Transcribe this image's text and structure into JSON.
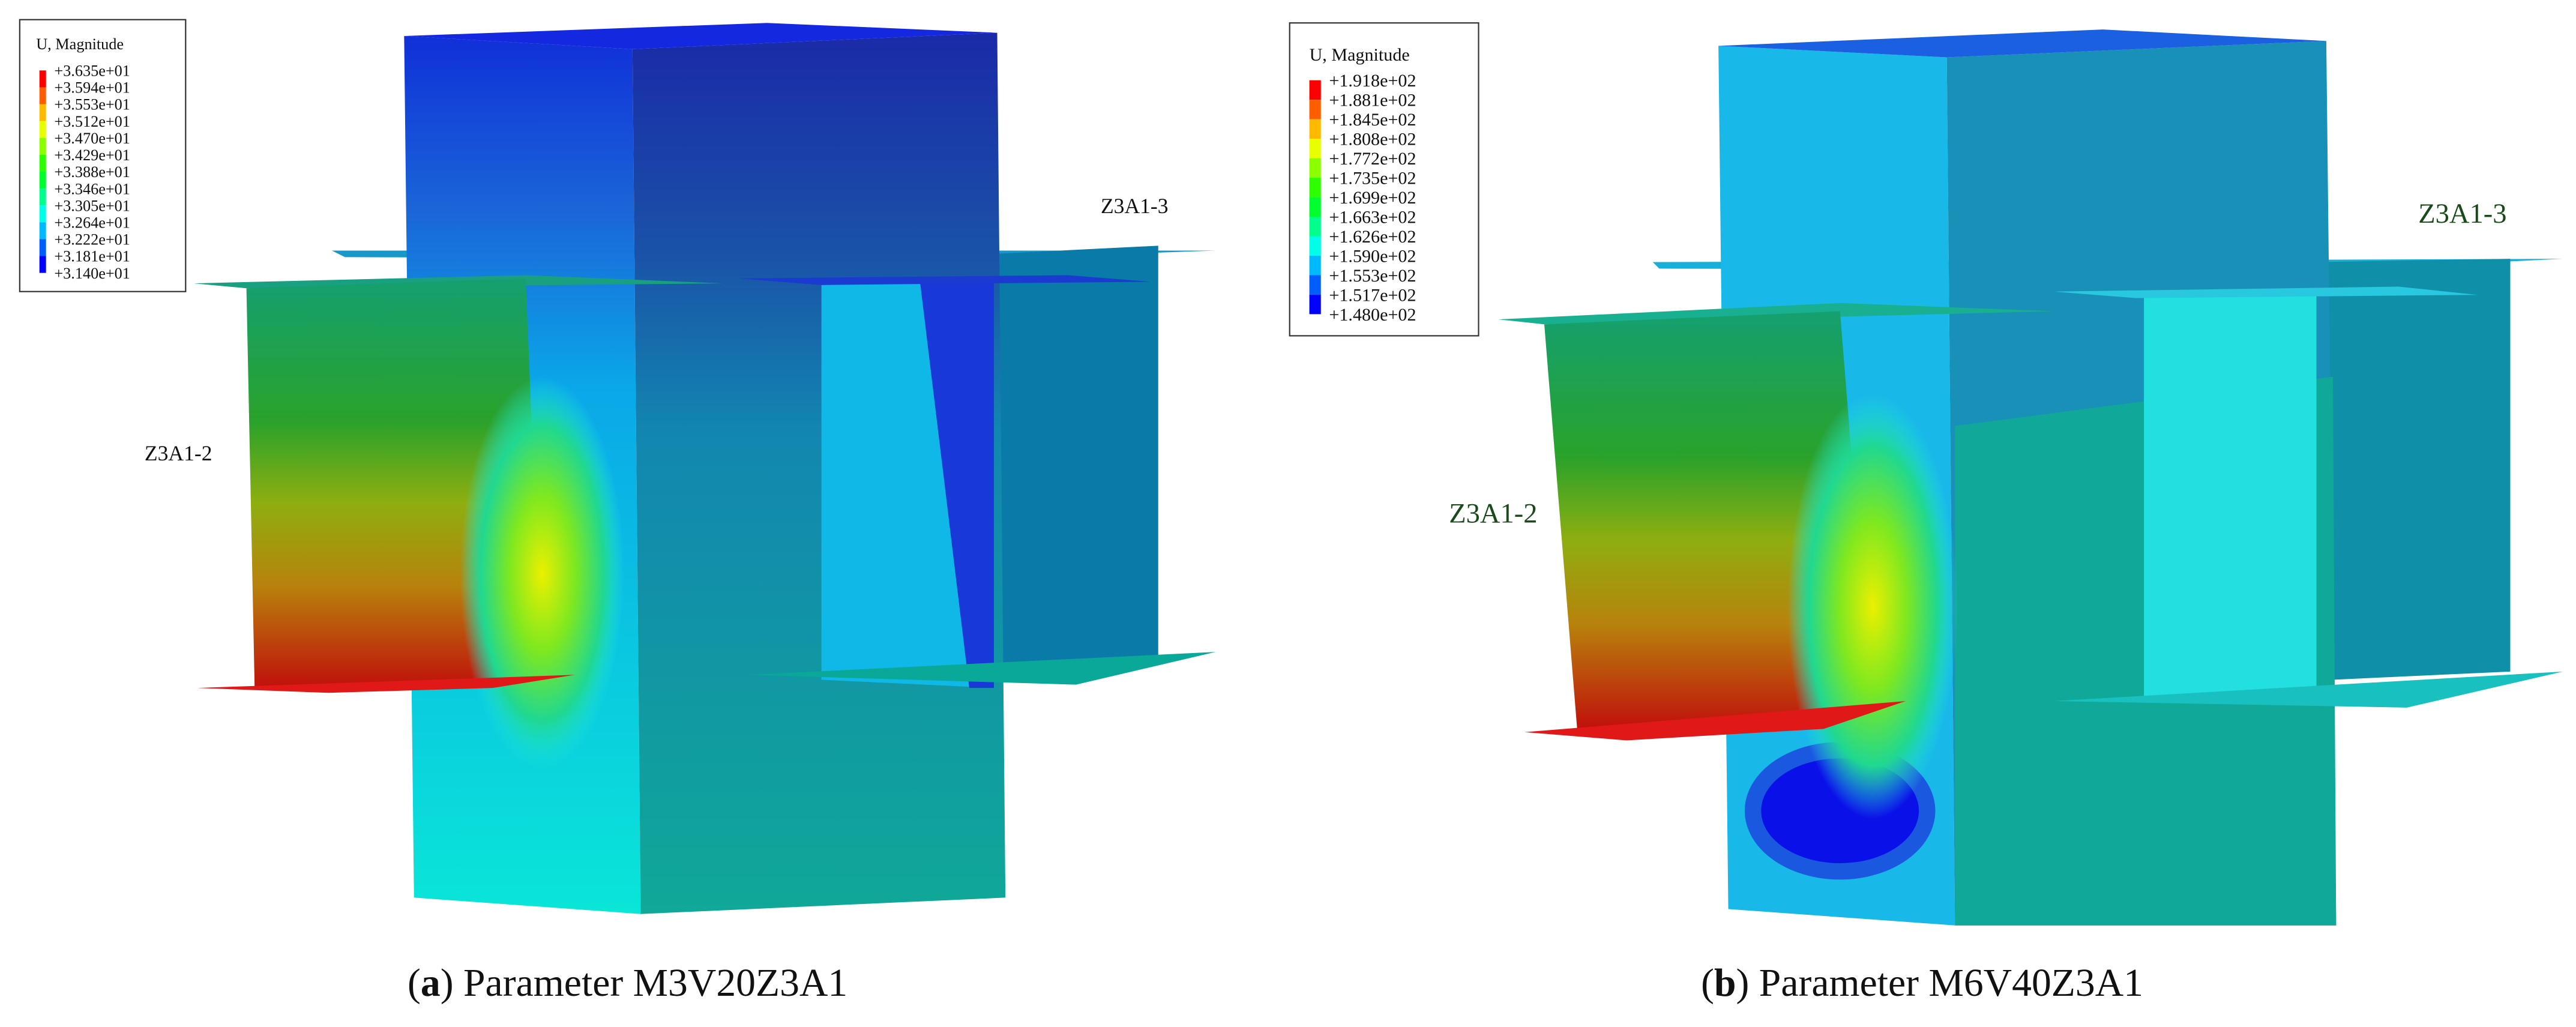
{
  "panels": [
    {
      "caption": {
        "label": "a",
        "text": "Parameter M3V20Z3A1"
      },
      "legend": {
        "title": "U, Magnitude",
        "labels": [
          "+3.635e+01",
          "+3.594e+01",
          "+3.553e+01",
          "+3.512e+01",
          "+3.470e+01",
          "+3.429e+01",
          "+3.388e+01",
          "+3.346e+01",
          "+3.305e+01",
          "+3.264e+01",
          "+3.222e+01",
          "+3.181e+01",
          "+3.140e+01"
        ]
      },
      "part_labels": [
        "Z3A1-3",
        "Z3A1-2"
      ]
    },
    {
      "caption": {
        "label": "b",
        "text": "Parameter M6V40Z3A1"
      },
      "legend": {
        "title": "U, Magnitude",
        "labels": [
          "+1.918e+02",
          "+1.881e+02",
          "+1.845e+02",
          "+1.808e+02",
          "+1.772e+02",
          "+1.735e+02",
          "+1.699e+02",
          "+1.663e+02",
          "+1.626e+02",
          "+1.590e+02",
          "+1.553e+02",
          "+1.517e+02",
          "+1.480e+02"
        ]
      },
      "part_labels": [
        "Z3A1-3",
        "Z3A1-2"
      ]
    }
  ]
}
